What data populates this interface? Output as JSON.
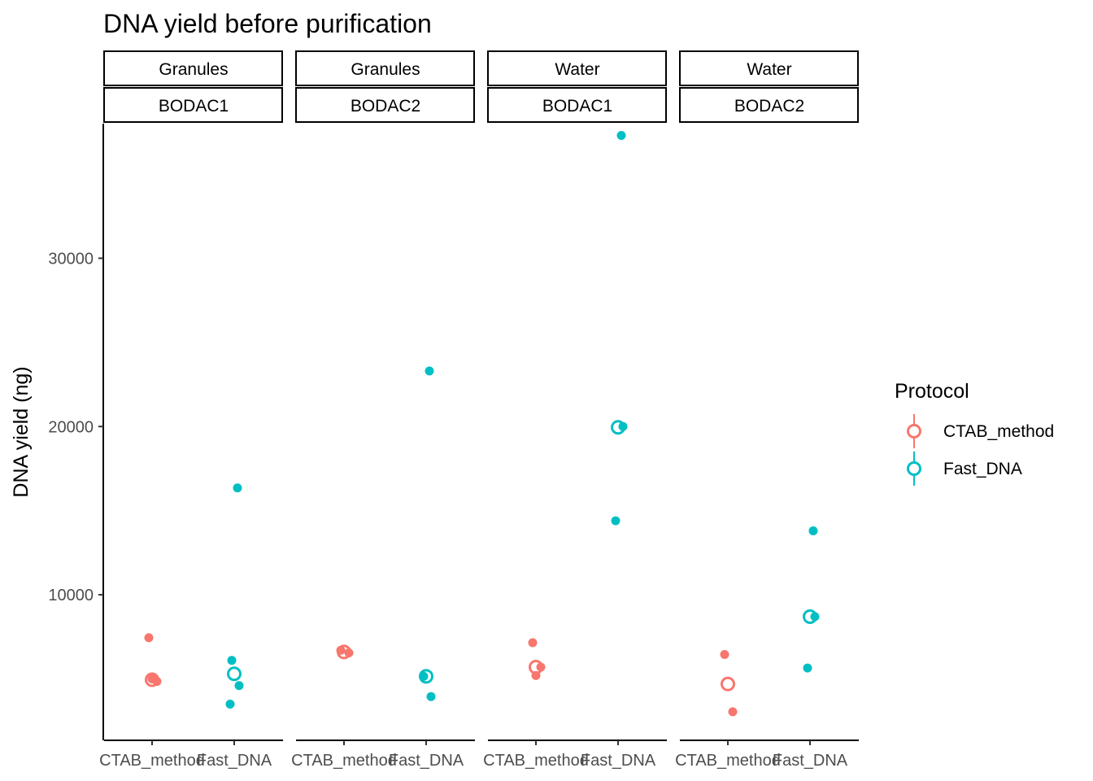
{
  "chart_data": {
    "type": "scatter",
    "title": "DNA yield before purification",
    "xlabel": "",
    "ylabel": "DNA yield (ng)",
    "ylim": [
      1350,
      38000
    ],
    "yticks": [
      10000,
      20000,
      30000
    ],
    "grid": false,
    "categories": [
      "CTAB_method",
      "Fast_DNA"
    ],
    "legend": {
      "title": "Protocol",
      "position": "right",
      "entries": [
        {
          "label": "CTAB_method",
          "color": "#F8766D"
        },
        {
          "label": "Fast_DNA",
          "color": "#00BFC4"
        }
      ]
    },
    "panels": [
      {
        "strip_top": "Granules",
        "strip_bottom": "BODAC1",
        "points": {
          "CTAB_method": [
            7450,
            4850,
            5000
          ],
          "Fast_DNA": [
            16350,
            6100,
            4600,
            3500
          ]
        },
        "means": {
          "CTAB_method": 4950,
          "Fast_DNA": 5300
        }
      },
      {
        "strip_top": "Granules",
        "strip_bottom": "BODAC2",
        "points": {
          "CTAB_method": [
            6700,
            6550
          ],
          "Fast_DNA": [
            23300,
            5150,
            3950
          ]
        },
        "means": {
          "CTAB_method": 6600,
          "Fast_DNA": 5150
        }
      },
      {
        "strip_top": "Water",
        "strip_bottom": "BODAC1",
        "points": {
          "CTAB_method": [
            7150,
            5700,
            5200
          ],
          "Fast_DNA": [
            37300,
            14400,
            20000
          ]
        },
        "means": {
          "CTAB_method": 5700,
          "Fast_DNA": 19950
        }
      },
      {
        "strip_top": "Water",
        "strip_bottom": "BODAC2",
        "points": {
          "CTAB_method": [
            6450,
            3050
          ],
          "Fast_DNA": [
            13800,
            5650,
            8700
          ]
        },
        "means": {
          "CTAB_method": 4700,
          "Fast_DNA": 8700
        }
      }
    ]
  }
}
